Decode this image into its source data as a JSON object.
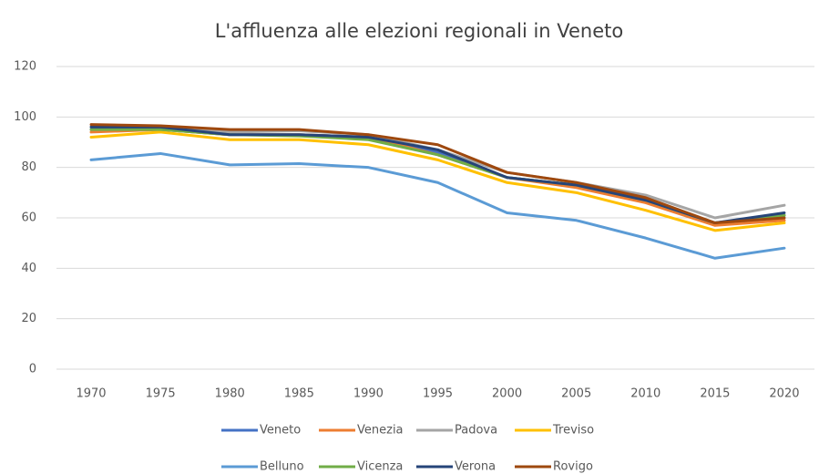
{
  "chart_data": {
    "type": "line",
    "title": "L'affluenza alle elezioni regionali in Veneto",
    "categories": [
      "1970",
      "1975",
      "1980",
      "1985",
      "1990",
      "1995",
      "2000",
      "2005",
      "2010",
      "2015",
      "2020"
    ],
    "series": [
      {
        "name": "Veneto",
        "color": "#4472c4",
        "values": [
          95,
          95,
          93,
          93,
          92,
          86,
          76,
          73,
          67,
          58,
          61
        ]
      },
      {
        "name": "Venezia",
        "color": "#ed7d31",
        "values": [
          94,
          95,
          93,
          93,
          92,
          85,
          76,
          72,
          66,
          57,
          59
        ]
      },
      {
        "name": "Padova",
        "color": "#a5a5a5",
        "values": [
          96,
          96,
          94,
          94.5,
          93,
          87,
          78,
          74,
          69,
          60,
          65
        ]
      },
      {
        "name": "Treviso",
        "color": "#ffc000",
        "values": [
          92,
          94,
          91,
          91,
          89,
          83,
          74,
          70,
          63,
          55,
          58
        ]
      },
      {
        "name": "Belluno",
        "color": "#5b9bd5",
        "values": [
          83,
          85.5,
          81,
          81.5,
          80,
          74,
          62,
          59,
          52,
          44,
          48
        ]
      },
      {
        "name": "Vicenza",
        "color": "#70ad47",
        "values": [
          95,
          95,
          93,
          92.5,
          91,
          85,
          76,
          73,
          67,
          58,
          61
        ]
      },
      {
        "name": "Verona",
        "color": "#264478",
        "values": [
          96,
          96,
          93,
          93,
          92,
          87,
          76,
          73,
          67,
          58,
          62
        ]
      },
      {
        "name": "Rovigo",
        "color": "#9e480e",
        "values": [
          97,
          96.5,
          95,
          95,
          93,
          89,
          78,
          74,
          68,
          58,
          60
        ]
      }
    ],
    "ylim": [
      0,
      120
    ],
    "yticks": [
      0,
      20,
      40,
      60,
      80,
      100,
      120
    ],
    "grid": true
  }
}
